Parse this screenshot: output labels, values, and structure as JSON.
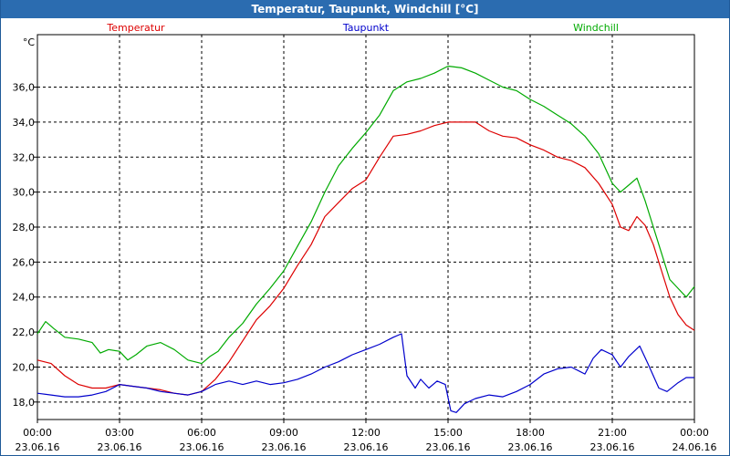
{
  "window": {
    "title": "Temperatur, Taupunkt, Windchill [°C]"
  },
  "chart_data": {
    "type": "line",
    "title": "Temperatur, Taupunkt, Windchill [°C]",
    "y_unit": "°C",
    "ylim": [
      17,
      39
    ],
    "y_ticks": [
      "18,0",
      "20,0",
      "22,0",
      "24,0",
      "26,0",
      "28,0",
      "30,0",
      "32,0",
      "34,0",
      "36,0"
    ],
    "x_ticks": [
      {
        "time": "00:00",
        "date": "23.06.16"
      },
      {
        "time": "03:00",
        "date": "23.06.16"
      },
      {
        "time": "06:00",
        "date": "23.06.16"
      },
      {
        "time": "09:00",
        "date": "23.06.16"
      },
      {
        "time": "12:00",
        "date": "23.06.16"
      },
      {
        "time": "15:00",
        "date": "23.06.16"
      },
      {
        "time": "18:00",
        "date": "23.06.16"
      },
      {
        "time": "21:00",
        "date": "23.06.16"
      },
      {
        "time": "00:00",
        "date": "24.06.16"
      }
    ],
    "x_range_hours": [
      0,
      24
    ],
    "grid": true,
    "series": [
      {
        "name": "Temperatur",
        "color": "#dd0000",
        "points": [
          [
            0,
            20.4
          ],
          [
            0.5,
            20.2
          ],
          [
            1,
            19.5
          ],
          [
            1.5,
            19.0
          ],
          [
            2,
            18.8
          ],
          [
            2.5,
            18.8
          ],
          [
            3,
            19.0
          ],
          [
            3.5,
            18.9
          ],
          [
            4,
            18.8
          ],
          [
            4.5,
            18.7
          ],
          [
            5,
            18.5
          ],
          [
            5.5,
            18.4
          ],
          [
            6,
            18.6
          ],
          [
            6.5,
            19.3
          ],
          [
            7,
            20.3
          ],
          [
            7.5,
            21.5
          ],
          [
            8,
            22.7
          ],
          [
            8.5,
            23.5
          ],
          [
            9,
            24.5
          ],
          [
            9.5,
            25.8
          ],
          [
            10,
            27.0
          ],
          [
            10.5,
            28.6
          ],
          [
            11,
            29.4
          ],
          [
            11.5,
            30.2
          ],
          [
            12,
            30.7
          ],
          [
            12.5,
            32.0
          ],
          [
            13,
            33.2
          ],
          [
            13.5,
            33.3
          ],
          [
            14,
            33.5
          ],
          [
            14.5,
            33.8
          ],
          [
            15,
            34.0
          ],
          [
            15.5,
            34.0
          ],
          [
            16,
            34.0
          ],
          [
            16.5,
            33.5
          ],
          [
            17,
            33.2
          ],
          [
            17.5,
            33.1
          ],
          [
            18,
            32.7
          ],
          [
            18.5,
            32.4
          ],
          [
            19,
            32.0
          ],
          [
            19.5,
            31.8
          ],
          [
            20,
            31.4
          ],
          [
            20.5,
            30.5
          ],
          [
            21,
            29.3
          ],
          [
            21.3,
            28.0
          ],
          [
            21.6,
            27.8
          ],
          [
            21.9,
            28.6
          ],
          [
            22.2,
            28.1
          ],
          [
            22.5,
            27.0
          ],
          [
            22.8,
            25.5
          ],
          [
            23.1,
            24.0
          ],
          [
            23.4,
            23.0
          ],
          [
            23.7,
            22.4
          ],
          [
            24,
            22.1
          ]
        ]
      },
      {
        "name": "Taupunkt",
        "color": "#0000cc",
        "points": [
          [
            0,
            18.5
          ],
          [
            0.5,
            18.4
          ],
          [
            1,
            18.3
          ],
          [
            1.5,
            18.3
          ],
          [
            2,
            18.4
          ],
          [
            2.5,
            18.6
          ],
          [
            3,
            19.0
          ],
          [
            3.5,
            18.9
          ],
          [
            4,
            18.8
          ],
          [
            4.5,
            18.6
          ],
          [
            5,
            18.5
          ],
          [
            5.5,
            18.4
          ],
          [
            6,
            18.6
          ],
          [
            6.5,
            19.0
          ],
          [
            7,
            19.2
          ],
          [
            7.5,
            19.0
          ],
          [
            8,
            19.2
          ],
          [
            8.5,
            19.0
          ],
          [
            9,
            19.1
          ],
          [
            9.5,
            19.3
          ],
          [
            10,
            19.6
          ],
          [
            10.5,
            20.0
          ],
          [
            11,
            20.3
          ],
          [
            11.5,
            20.7
          ],
          [
            12,
            21.0
          ],
          [
            12.5,
            21.3
          ],
          [
            13,
            21.7
          ],
          [
            13.3,
            21.9
          ],
          [
            13.5,
            19.5
          ],
          [
            13.8,
            18.8
          ],
          [
            14,
            19.3
          ],
          [
            14.3,
            18.8
          ],
          [
            14.6,
            19.2
          ],
          [
            14.9,
            19.0
          ],
          [
            15.1,
            17.5
          ],
          [
            15.3,
            17.4
          ],
          [
            15.6,
            17.9
          ],
          [
            16,
            18.2
          ],
          [
            16.5,
            18.4
          ],
          [
            17,
            18.3
          ],
          [
            17.5,
            18.6
          ],
          [
            18,
            19.0
          ],
          [
            18.5,
            19.6
          ],
          [
            19,
            19.9
          ],
          [
            19.5,
            20.0
          ],
          [
            20,
            19.6
          ],
          [
            20.3,
            20.5
          ],
          [
            20.6,
            21.0
          ],
          [
            21,
            20.7
          ],
          [
            21.3,
            20.0
          ],
          [
            21.6,
            20.6
          ],
          [
            22,
            21.2
          ],
          [
            22.3,
            20.2
          ],
          [
            22.7,
            18.8
          ],
          [
            23,
            18.6
          ],
          [
            23.4,
            19.1
          ],
          [
            23.7,
            19.4
          ],
          [
            24,
            19.4
          ]
        ]
      },
      {
        "name": "Windchill",
        "color": "#00aa00",
        "points": [
          [
            0,
            21.9
          ],
          [
            0.3,
            22.6
          ],
          [
            0.6,
            22.2
          ],
          [
            1,
            21.7
          ],
          [
            1.5,
            21.6
          ],
          [
            2,
            21.4
          ],
          [
            2.3,
            20.8
          ],
          [
            2.6,
            21.0
          ],
          [
            3,
            20.9
          ],
          [
            3.3,
            20.4
          ],
          [
            3.6,
            20.7
          ],
          [
            4,
            21.2
          ],
          [
            4.5,
            21.4
          ],
          [
            5,
            21.0
          ],
          [
            5.5,
            20.4
          ],
          [
            6,
            20.2
          ],
          [
            6.3,
            20.6
          ],
          [
            6.6,
            20.9
          ],
          [
            7,
            21.7
          ],
          [
            7.5,
            22.5
          ],
          [
            8,
            23.6
          ],
          [
            8.5,
            24.5
          ],
          [
            9,
            25.5
          ],
          [
            9.5,
            26.9
          ],
          [
            10,
            28.3
          ],
          [
            10.5,
            30.0
          ],
          [
            11,
            31.5
          ],
          [
            11.5,
            32.5
          ],
          [
            12,
            33.4
          ],
          [
            12.5,
            34.4
          ],
          [
            13,
            35.8
          ],
          [
            13.5,
            36.3
          ],
          [
            14,
            36.5
          ],
          [
            14.5,
            36.8
          ],
          [
            15,
            37.2
          ],
          [
            15.5,
            37.1
          ],
          [
            16,
            36.8
          ],
          [
            16.5,
            36.4
          ],
          [
            17,
            36.0
          ],
          [
            17.5,
            35.8
          ],
          [
            18,
            35.3
          ],
          [
            18.5,
            34.9
          ],
          [
            19,
            34.4
          ],
          [
            19.5,
            33.9
          ],
          [
            20,
            33.2
          ],
          [
            20.5,
            32.2
          ],
          [
            21,
            30.5
          ],
          [
            21.3,
            30.0
          ],
          [
            21.6,
            30.4
          ],
          [
            21.9,
            30.8
          ],
          [
            22.2,
            29.5
          ],
          [
            22.5,
            28.0
          ],
          [
            22.8,
            26.5
          ],
          [
            23.1,
            25.0
          ],
          [
            23.4,
            24.5
          ],
          [
            23.7,
            24.0
          ],
          [
            24,
            24.6
          ]
        ]
      }
    ]
  }
}
